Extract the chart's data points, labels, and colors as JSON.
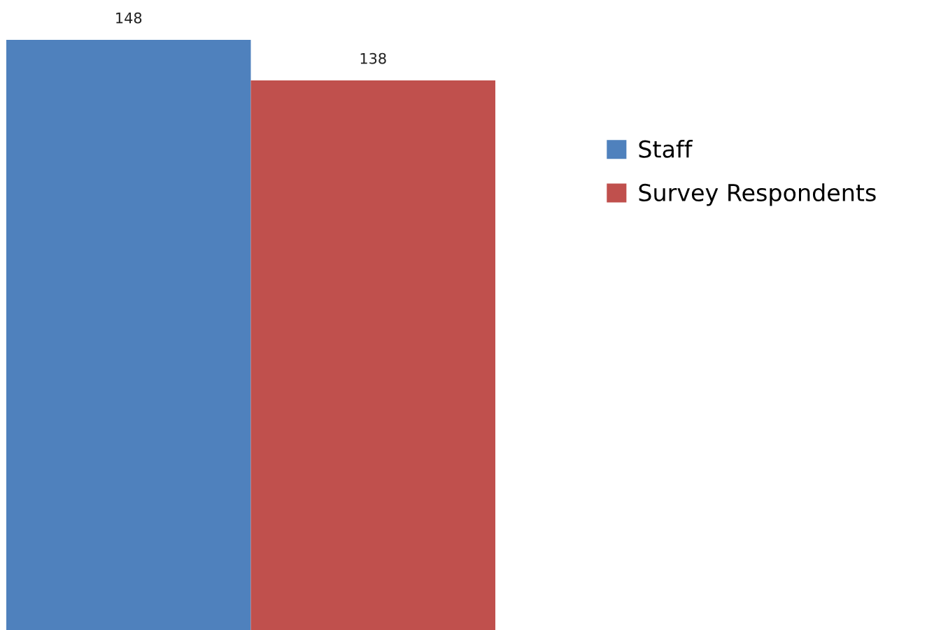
{
  "chart_data": {
    "type": "bar",
    "categories": [
      null
    ],
    "series": [
      {
        "name": "Staff",
        "color": "#4f81bd",
        "values": [
          148
        ]
      },
      {
        "name": "Survey Respondents",
        "color": "#c0504d",
        "values": [
          138
        ]
      }
    ],
    "data_labels": true,
    "legend": "right",
    "grid": false,
    "tick_labels": false
  }
}
